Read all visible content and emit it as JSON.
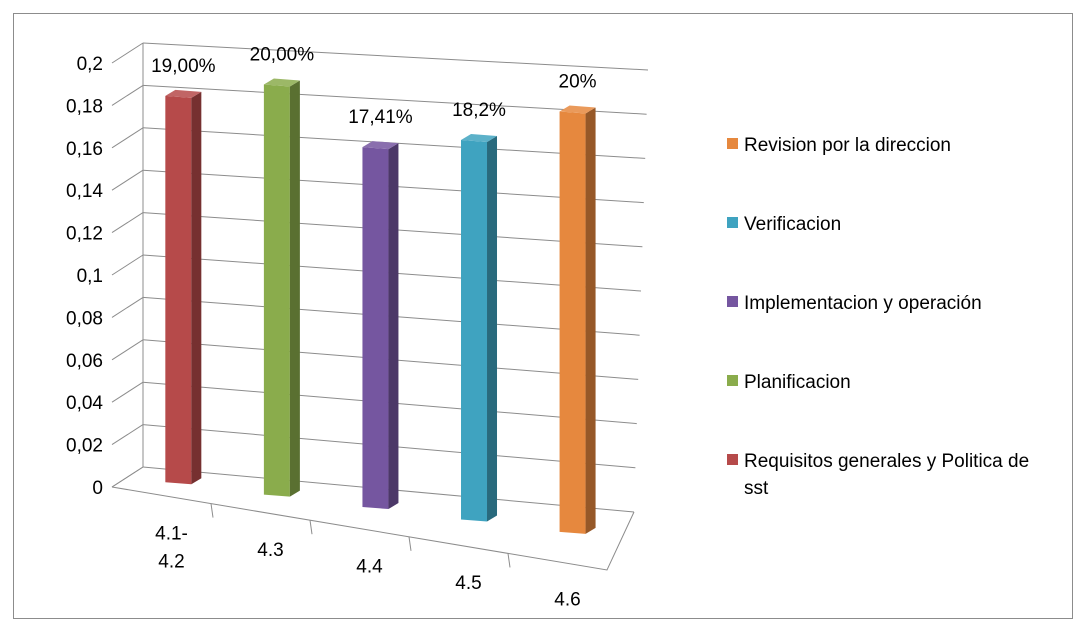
{
  "chart_data": {
    "type": "bar",
    "style": "3d-column",
    "categories": [
      "4.1-4.2",
      "4.3",
      "4.4",
      "4.5",
      "4.6"
    ],
    "category_lines": [
      [
        "4.1-",
        "4.2"
      ],
      [
        "4.3"
      ],
      [
        "4.4"
      ],
      [
        "4.5"
      ],
      [
        "4.6"
      ]
    ],
    "values": [
      0.19,
      0.2,
      0.1741,
      0.182,
      0.2
    ],
    "data_labels": [
      "19,00%",
      "20,00%",
      "17,41%",
      "18,2%",
      "20%"
    ],
    "colors": [
      "#b64a4a",
      "#8aac4c",
      "#7556a0",
      "#3fa3c0",
      "#e6883e"
    ],
    "series_names": [
      "Requisitos generales y Politica de sst",
      "Planificacion",
      "Implementacion y operación",
      "Verificacion",
      "Revision por la direccion"
    ],
    "yticks": [
      "0",
      "0,02",
      "0,04",
      "0,06",
      "0,08",
      "0,1",
      "0,12",
      "0,14",
      "0,16",
      "0,18",
      "0,2"
    ],
    "ylim": [
      0,
      0.2
    ],
    "grid": true,
    "legend": {
      "position": "right",
      "order": [
        4,
        3,
        2,
        1,
        0
      ],
      "items": [
        "Revision por la direccion",
        "Verificacion",
        "Implementacion y operación",
        "Planificacion",
        "Requisitos generales y Politica de sst"
      ]
    },
    "title": "",
    "xlabel": "",
    "ylabel": ""
  }
}
